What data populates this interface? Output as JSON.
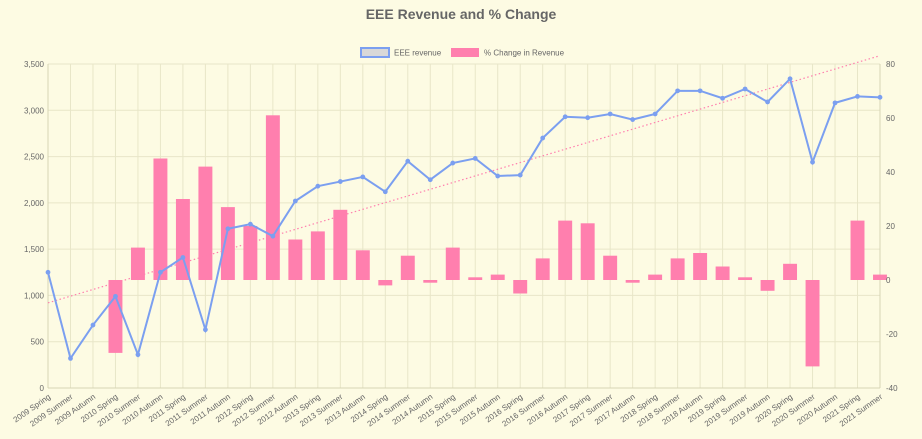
{
  "chart_data": {
    "type": "bar",
    "title": "EEE Revenue and % Change",
    "legend_position": "top",
    "grid": true,
    "categories": [
      "2009 Spring",
      "2009 Summer",
      "2009 Autumn",
      "2010 Spring",
      "2010 Summer",
      "2010 Autumn",
      "2011 Spring",
      "2011 Summer",
      "2011 Autumn",
      "2012 Spring",
      "2012 Summer",
      "2012 Autumn",
      "2013 Spring",
      "2013 Summer",
      "2013 Autumn",
      "2014 Spring",
      "2014 Summer",
      "2014 Autumn",
      "2015 Spring",
      "2015 Summer",
      "2015 Autumn",
      "2016 Spring",
      "2016 Summer",
      "2016 Autumn",
      "2017 Spring",
      "2017 Summer",
      "2017 Autumn",
      "2018 Spring",
      "2018 Summer",
      "2018 Autumn",
      "2019 Spring",
      "2019 Summer",
      "2019 Autumn",
      "2020 Spring",
      "2020 Summer",
      "2020 Autumn",
      "2021 Spring",
      "2021 Summer"
    ],
    "y_left": {
      "min": 0,
      "max": 3500,
      "step": 500
    },
    "y_right": {
      "min": -40,
      "max": 80,
      "step": 20
    },
    "series": [
      {
        "name": "EEE revenue",
        "kind": "line",
        "axis": "left",
        "color": "#7b9ff0",
        "values": [
          1250,
          320,
          680,
          990,
          360,
          1250,
          1410,
          630,
          1720,
          1770,
          1640,
          2020,
          2180,
          2230,
          2280,
          2120,
          2450,
          2250,
          2430,
          2480,
          2290,
          2300,
          2700,
          2930,
          2920,
          2960,
          2900,
          2960,
          3210,
          3210,
          3130,
          3230,
          3090,
          3340,
          2440,
          3080,
          3150,
          3140
        ]
      },
      {
        "name": "% Change in Revenue",
        "kind": "bar",
        "axis": "right",
        "color": "#ff7fae",
        "values": [
          0,
          0,
          0,
          -27,
          12,
          45,
          30,
          42,
          27,
          20,
          61,
          15,
          18,
          26,
          11,
          -2,
          9,
          -1,
          12,
          1,
          2,
          -5,
          8,
          22,
          21,
          9,
          -1,
          2,
          8,
          10,
          5,
          1,
          -4,
          6,
          -32,
          0,
          22,
          2
        ]
      }
    ],
    "trendline": {
      "kind": "linear",
      "axis": "left",
      "color": "#ff7fae",
      "style": "dotted",
      "start": 920,
      "end": 3590
    }
  }
}
